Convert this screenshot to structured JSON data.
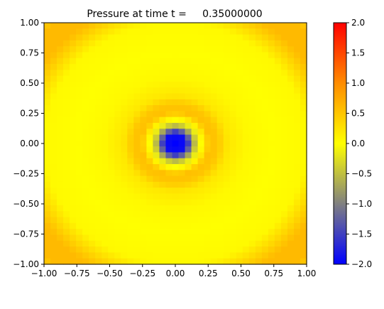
{
  "chart_data": {
    "type": "heatmap",
    "title": "Pressure at time t =     0.35000000",
    "xlabel": "",
    "ylabel": "",
    "xlim": [
      -1.0,
      1.0
    ],
    "ylim": [
      -1.0,
      1.0
    ],
    "grid": false,
    "x_ticks": [
      "−1.00",
      "−0.75",
      "−0.50",
      "−0.25",
      "0.00",
      "0.25",
      "0.50",
      "0.75",
      "1.00"
    ],
    "y_ticks": [
      "−1.00",
      "−0.75",
      "−0.50",
      "−0.25",
      "0.00",
      "0.25",
      "0.50",
      "0.75",
      "1.00"
    ],
    "x_tick_values": [
      -1.0,
      -0.75,
      -0.5,
      -0.25,
      0.0,
      0.25,
      0.5,
      0.75,
      1.0
    ],
    "y_tick_values": [
      -1.0,
      -0.75,
      -0.5,
      -0.25,
      0.0,
      0.25,
      0.5,
      0.75,
      1.0
    ],
    "grid_resolution": 41,
    "field": {
      "description_of_structure": "radially symmetric about origin",
      "center_min": -2.0,
      "radial_profile": {
        "r": [
          0.0,
          0.08,
          0.12,
          0.16,
          0.2,
          0.26,
          0.32,
          0.4,
          0.55,
          0.75,
          1.0,
          1.2,
          1.35,
          1.45
        ],
        "value": [
          -2.0,
          -1.9,
          -1.0,
          -0.3,
          0.05,
          0.55,
          0.5,
          0.2,
          0.05,
          0.0,
          0.05,
          0.6,
          0.6,
          0.3
        ]
      }
    },
    "colorbar": {
      "vmin": -2.0,
      "vmax": 2.0,
      "ticks": [
        "2.0",
        "1.5",
        "1.0",
        "0.5",
        "0.0",
        "−0.5",
        "−1.0",
        "−1.5",
        "−2.0"
      ],
      "tick_values": [
        2.0,
        1.5,
        1.0,
        0.5,
        0.0,
        -0.5,
        -1.0,
        -1.5,
        -2.0
      ],
      "colormap": [
        {
          "v": -2.0,
          "color": "#0000ff"
        },
        {
          "v": -1.0,
          "color": "#808080"
        },
        {
          "v": 0.0,
          "color": "#ffff00"
        },
        {
          "v": 1.0,
          "color": "#ff8c00"
        },
        {
          "v": 2.0,
          "color": "#ff0000"
        }
      ]
    }
  }
}
